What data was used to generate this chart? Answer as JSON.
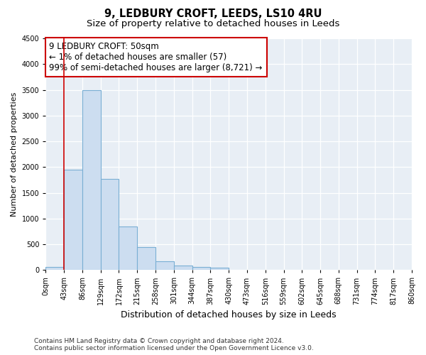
{
  "title": "9, LEDBURY CROFT, LEEDS, LS10 4RU",
  "subtitle": "Size of property relative to detached houses in Leeds",
  "xlabel": "Distribution of detached houses by size in Leeds",
  "ylabel": "Number of detached properties",
  "bin_edges": [
    0,
    43,
    86,
    129,
    172,
    215,
    258,
    301,
    344,
    387,
    430,
    473,
    516,
    559,
    602,
    645,
    688,
    731,
    774,
    817,
    860
  ],
  "bar_heights": [
    57,
    1950,
    3500,
    1775,
    850,
    450,
    175,
    90,
    60,
    50,
    0,
    0,
    0,
    0,
    0,
    0,
    0,
    0,
    0,
    0
  ],
  "bar_color": "#ccddf0",
  "bar_edge_color": "#7aafd4",
  "bg_color": "#e8eef5",
  "grid_color": "#ffffff",
  "fig_bg_color": "#ffffff",
  "property_line_x": 43,
  "property_line_color": "#cc0000",
  "annotation_text_line1": "9 LEDBURY CROFT: 50sqm",
  "annotation_text_line2": "← 1% of detached houses are smaller (57)",
  "annotation_text_line3": "99% of semi-detached houses are larger (8,721) →",
  "annotation_box_color": "#ffffff",
  "annotation_box_edge": "#cc0000",
  "ylim": [
    0,
    4500
  ],
  "yticks": [
    0,
    500,
    1000,
    1500,
    2000,
    2500,
    3000,
    3500,
    4000,
    4500
  ],
  "tick_labels": [
    "0sqm",
    "43sqm",
    "86sqm",
    "129sqm",
    "172sqm",
    "215sqm",
    "258sqm",
    "301sqm",
    "344sqm",
    "387sqm",
    "430sqm",
    "473sqm",
    "516sqm",
    "559sqm",
    "602sqm",
    "645sqm",
    "688sqm",
    "731sqm",
    "774sqm",
    "817sqm",
    "860sqm"
  ],
  "footer_text": "Contains HM Land Registry data © Crown copyright and database right 2024.\nContains public sector information licensed under the Open Government Licence v3.0.",
  "title_fontsize": 10.5,
  "subtitle_fontsize": 9.5,
  "xlabel_fontsize": 9,
  "ylabel_fontsize": 8,
  "tick_fontsize": 7,
  "annotation_fontsize": 8.5,
  "footer_fontsize": 6.5
}
